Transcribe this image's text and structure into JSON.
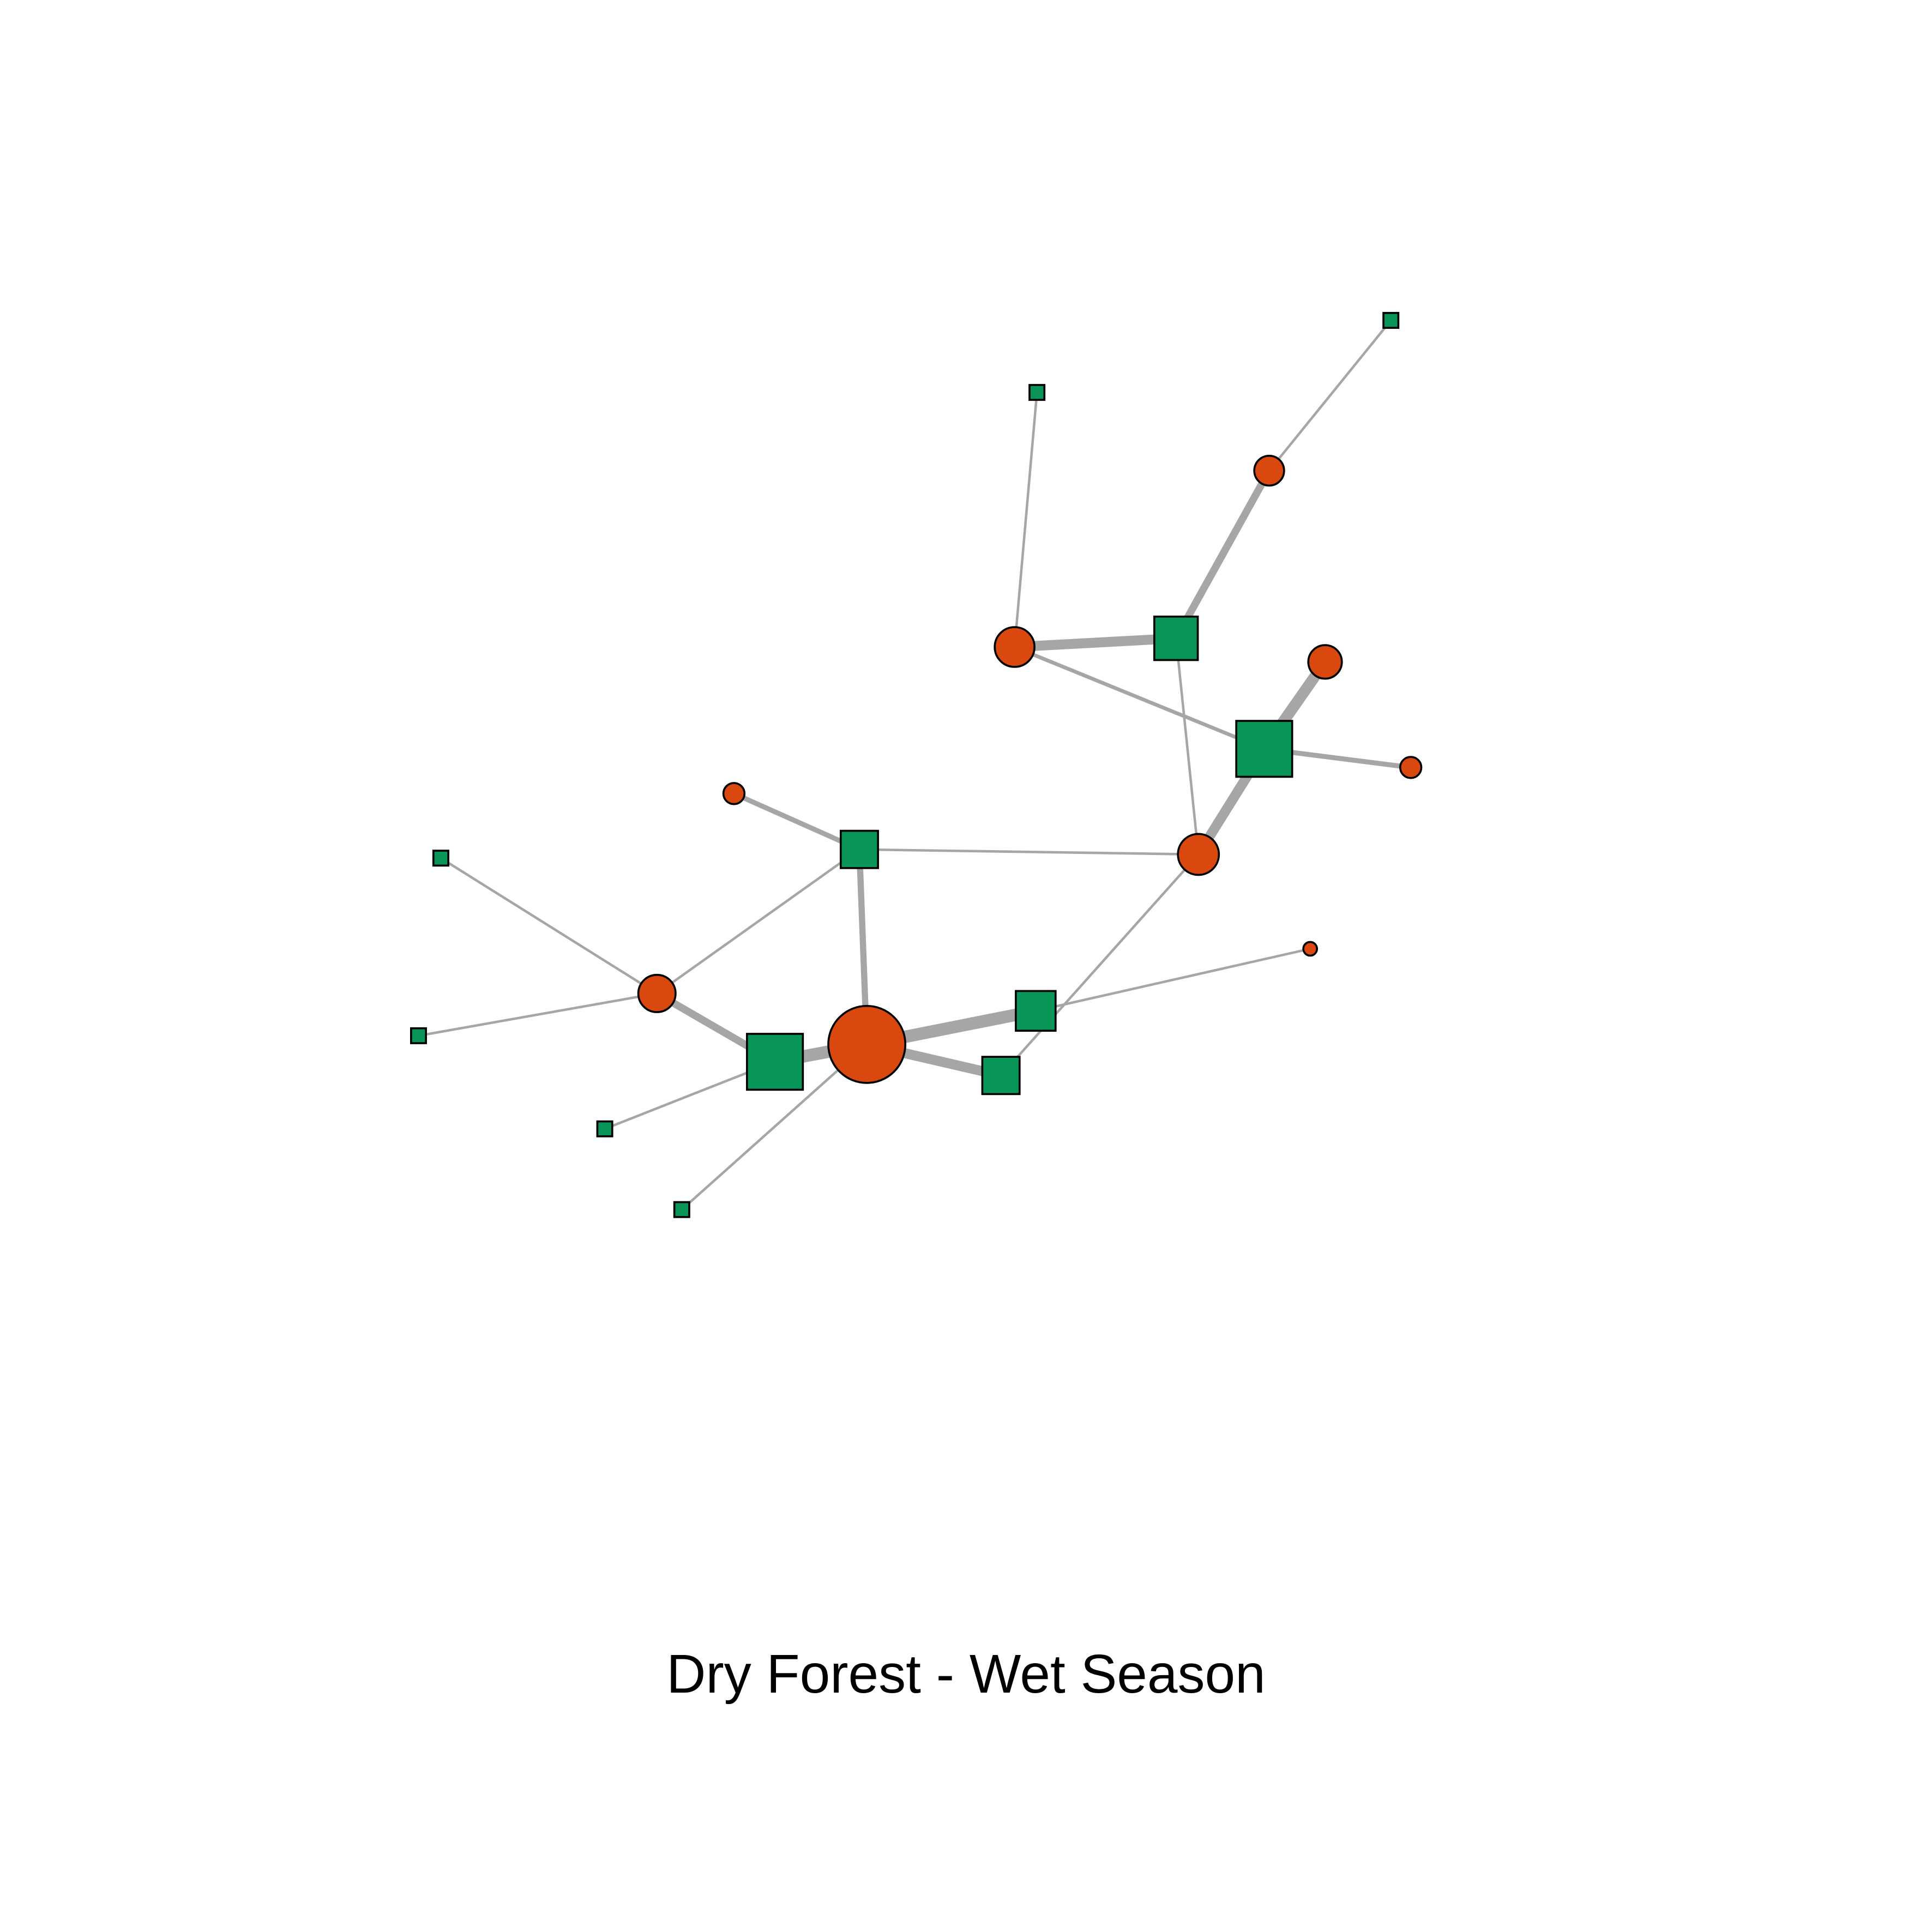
{
  "figure": {
    "caption": "Dry Forest - Wet Season"
  },
  "colors": {
    "edge": "#a6a6a6",
    "circle_node": "#d9480f",
    "square_node": "#0a9558",
    "node_outline": "#000000",
    "background": "#ffffff"
  },
  "node_types": {
    "circle": "circle",
    "square": "square"
  }
}
